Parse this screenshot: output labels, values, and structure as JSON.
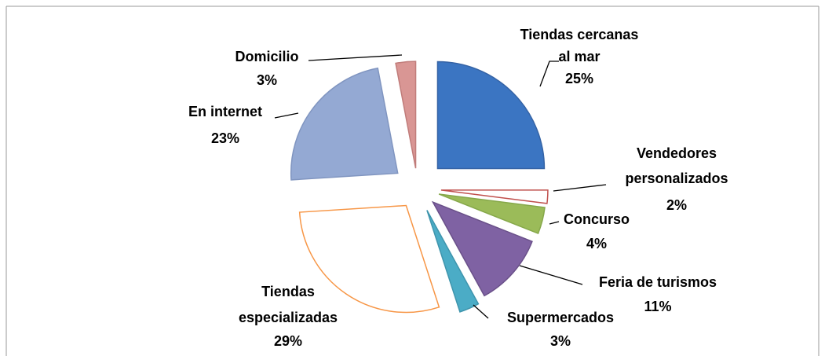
{
  "chart_data": {
    "type": "pie",
    "categories": [
      "Tiendas cercanas al mar",
      "Vendedores personalizados",
      "Concurso",
      "Feria de turismos",
      "Supermercados",
      "Tiendas especializadas",
      "En internet",
      "Domicilio"
    ],
    "values": [
      25,
      2,
      4,
      11,
      3,
      29,
      23,
      3
    ],
    "value_labels": [
      "25%",
      "2%",
      "4%",
      "11%",
      "3%",
      "29%",
      "23%",
      "3%"
    ],
    "colors": [
      "#3b75c2",
      "#ffffff",
      "#9bbb59",
      "#7f62a3",
      "#4bacc6",
      "#ffffff",
      "#94a9d3",
      "#d99694"
    ],
    "edge_colors": [
      "#3563a5",
      "#c0504d",
      "#86a84a",
      "#6a5089",
      "#3f95ad",
      "#f79646",
      "#8095c0",
      "#c07c7a"
    ]
  }
}
